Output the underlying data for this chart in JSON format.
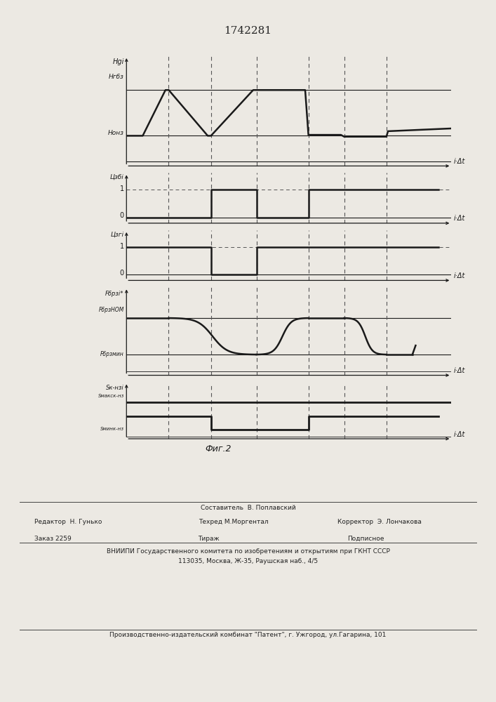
{
  "title": "1742281",
  "fig_label": "Фиг.2",
  "background_color": "#ece9e3",
  "line_color": "#1a1a1a",
  "dashed_color": "#555555",
  "vdx": [
    0.13,
    0.26,
    0.4,
    0.56,
    0.67,
    0.8
  ],
  "footer_col1_top": "Составитель  В. Поплавский",
  "footer_col1": "Редактор  Н. Гунько",
  "footer_col2": "Техред М.Моргентал",
  "footer_col3": "Корректор  Э. Лончакова",
  "footer_zakaz": "Заказ 2259",
  "footer_tirazh": "Тираж",
  "footer_podp": "Подписное",
  "footer_vniip1": "ВНИИПИ Государственного комитета по изобретениям и открытиям при ГКНТ СССР",
  "footer_vniip2": "113035, Москва, Ж-35, Раушская наб., 4/5",
  "footer_patent": "Производственно-издательский комбинат \"Патент\", г. Ужгород, ул.Гагарина, 101"
}
